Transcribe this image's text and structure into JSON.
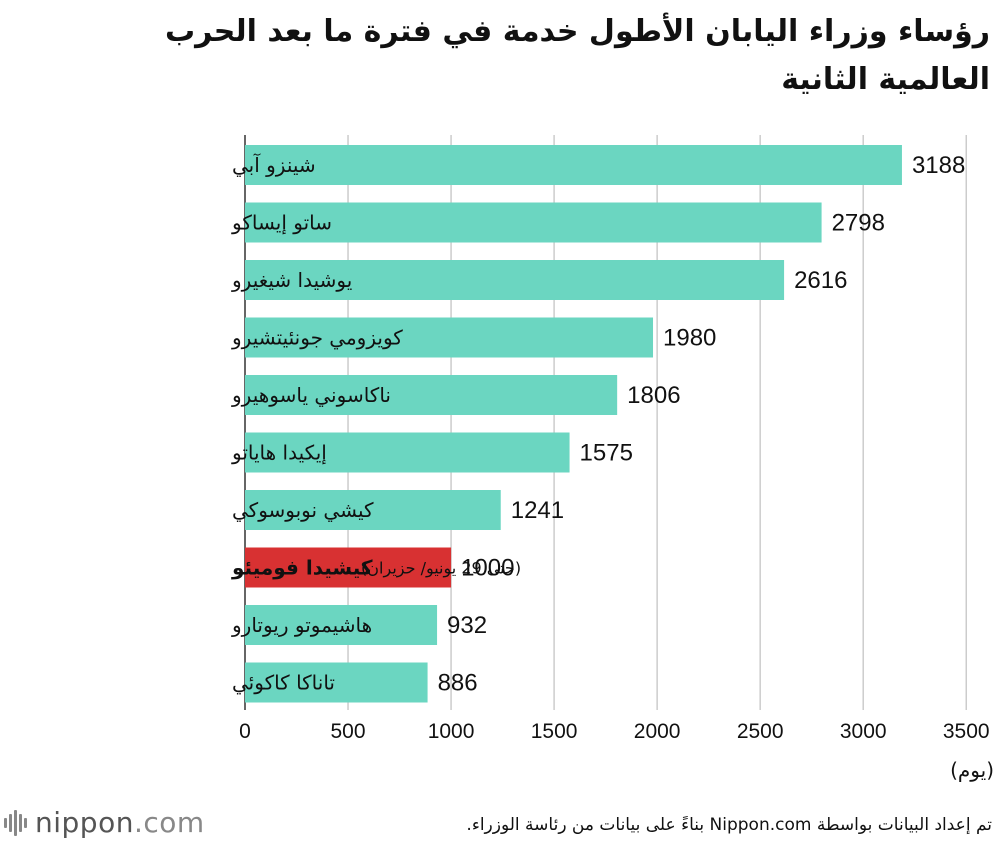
{
  "header": {
    "title": "رؤساء وزراء اليابان الأطول خدمة في فترة ما بعد الحرب العالمية الثانية"
  },
  "chart_data": {
    "type": "bar",
    "orientation": "horizontal",
    "categories": [
      "شينزو آبي",
      "ساتو إيساكو",
      "يوشيدا شيغيرو",
      "كويزومي جونئيتشيرو",
      "ناكاسوني ياسوهيرو",
      "إيكيدا هاياتو",
      "كيشي نوبوسوكي",
      "كيشيدا فوميئو",
      "هاشيموتو ريوتارو",
      "تاناكا كاكوئي"
    ],
    "values": [
      3188,
      2798,
      2616,
      1980,
      1806,
      1575,
      1241,
      1000,
      932,
      886
    ],
    "highlight_index": 7,
    "highlight_note": "(حتى 29 يونيو/ حزيران)",
    "xlim": [
      0,
      3500
    ],
    "xticks": [
      0,
      500,
      1000,
      1500,
      2000,
      2500,
      3000,
      3500
    ],
    "xlabel": "(يوم)",
    "grid": true,
    "colors": {
      "bar": "#6bd6c1",
      "highlight": "#d83132",
      "grid": "#cccccc",
      "axis": "#333333"
    }
  },
  "footer": {
    "source": "تم إعداد البيانات بواسطة Nippon.com بناءً على بيانات من رئاسة الوزراء.",
    "logo_main": "nippon",
    "logo_tld": ".com",
    "logo_icon": "nippon-bars-icon"
  }
}
